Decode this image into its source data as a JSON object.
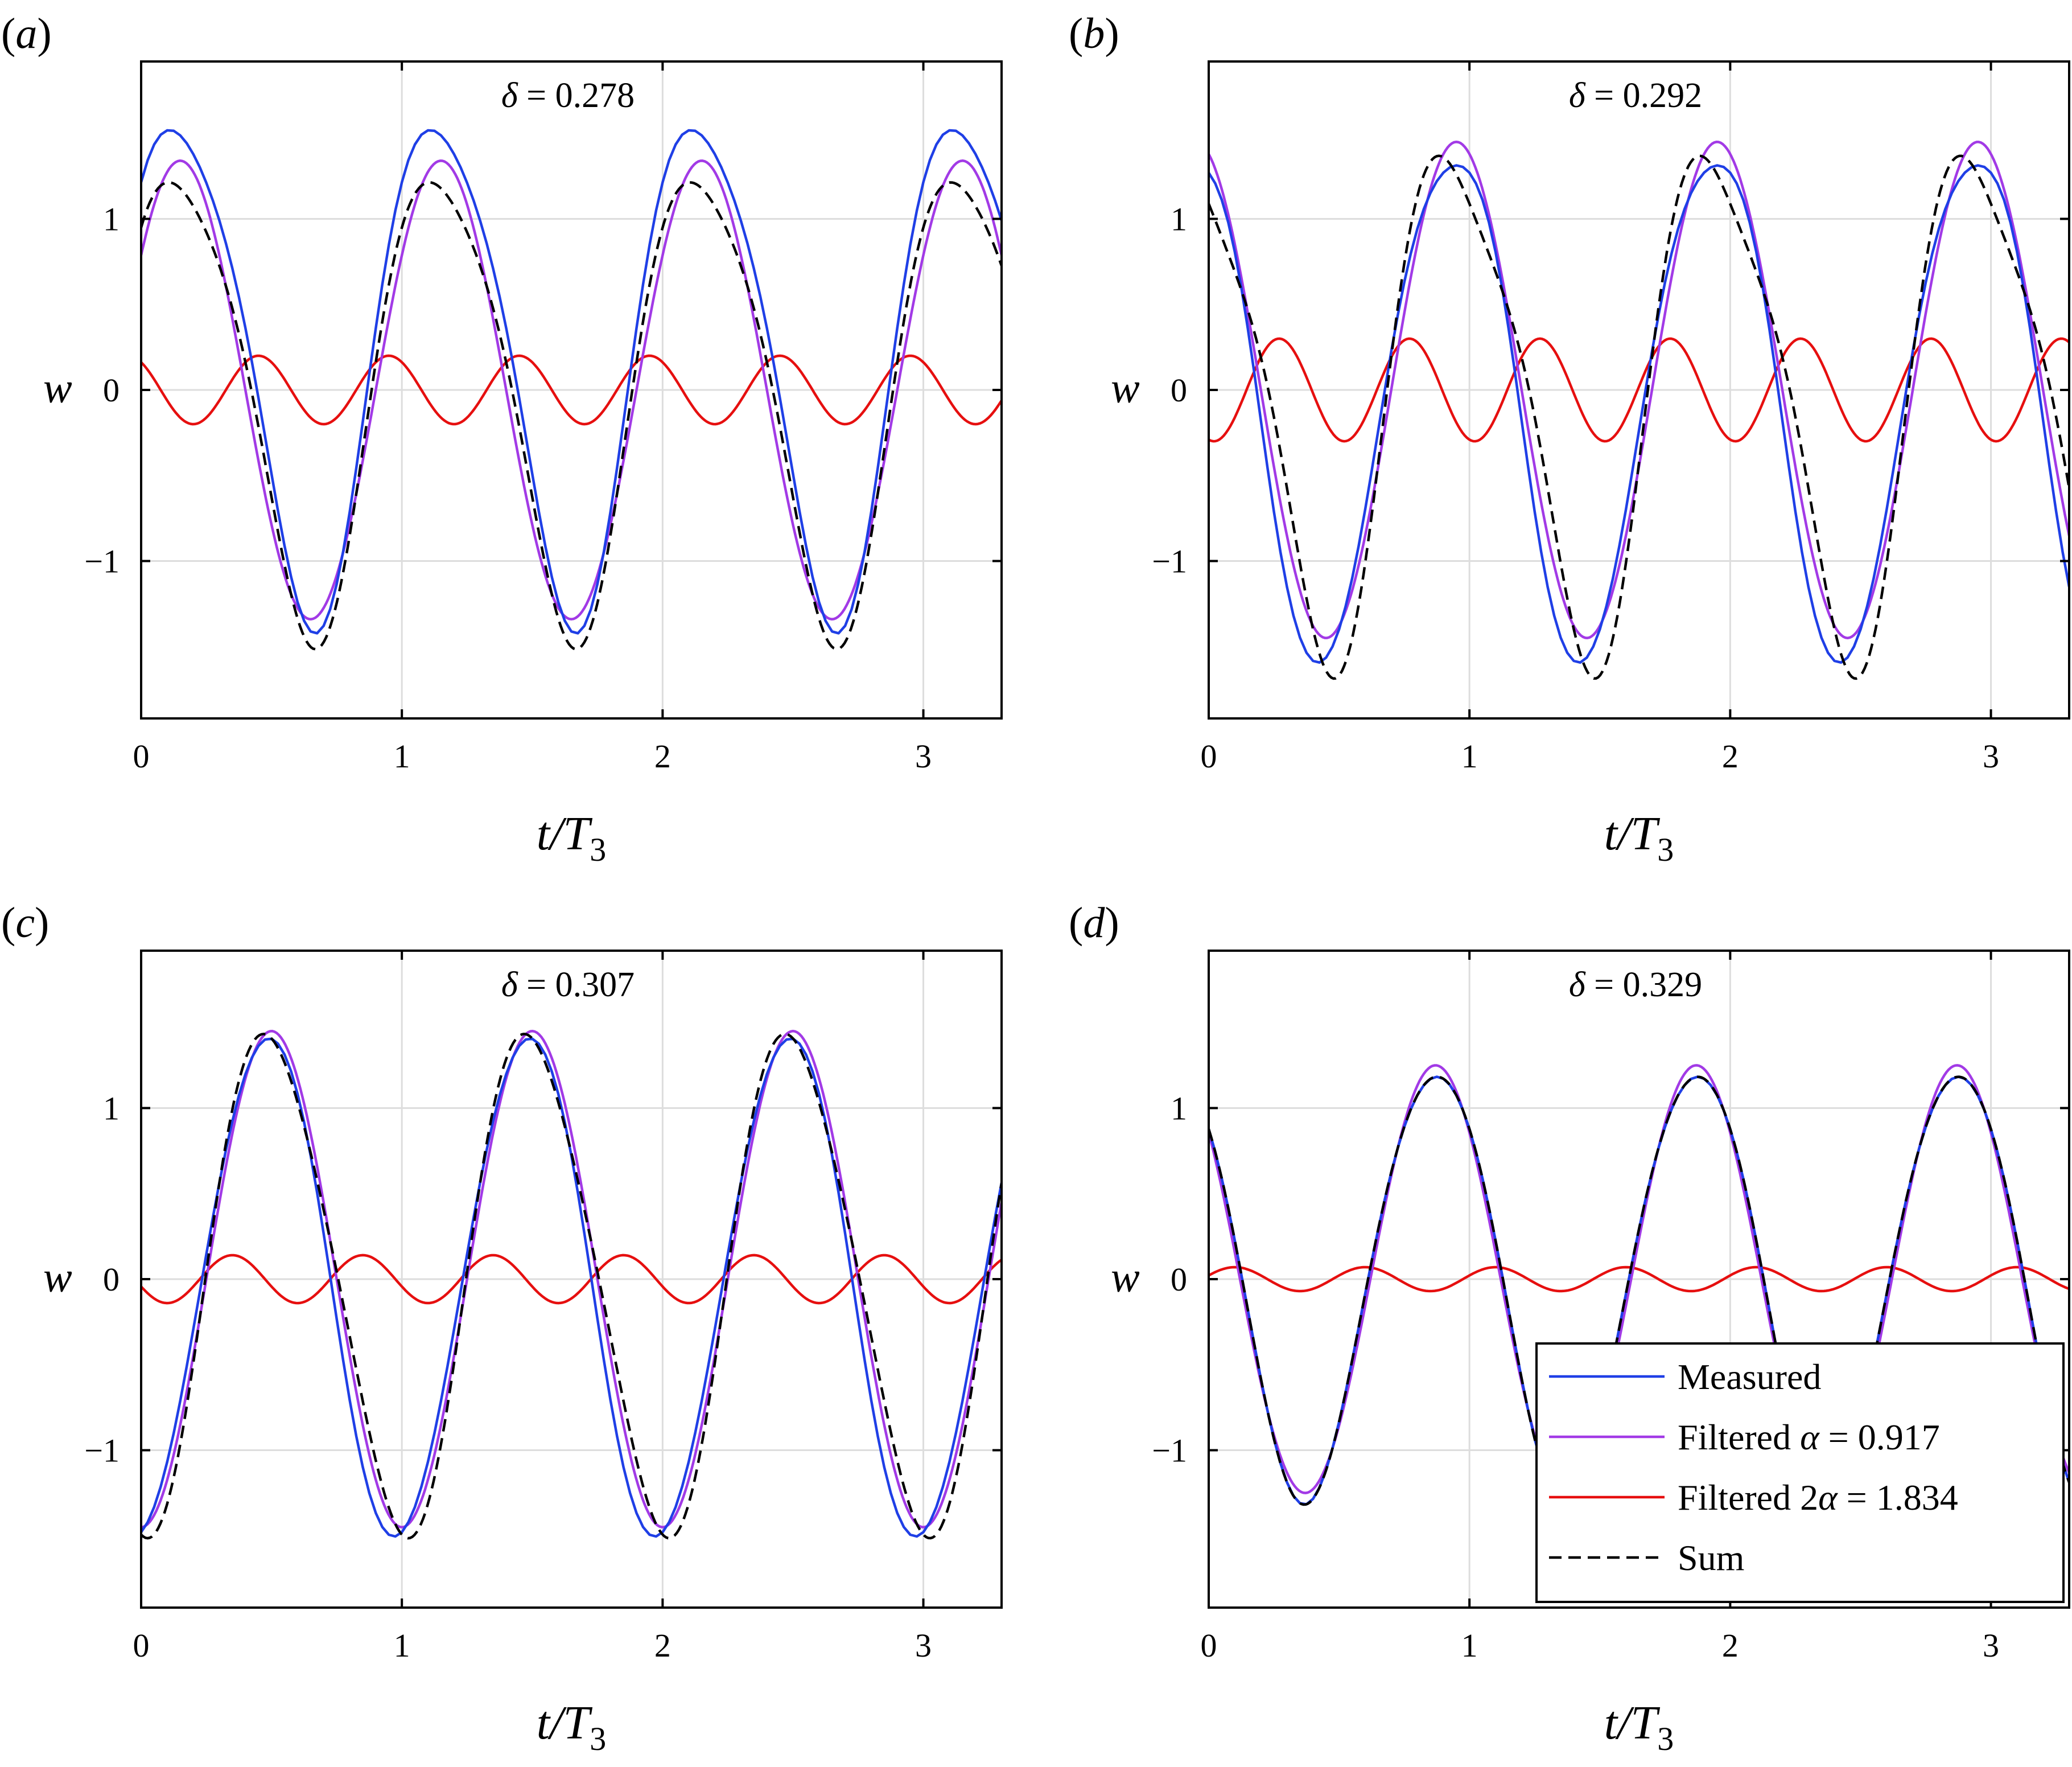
{
  "figure": {
    "legend": {
      "items": [
        {
          "label": "Measured",
          "color": "#1f3fe6",
          "dash": "solid"
        },
        {
          "label": "Filtered α = 0.917",
          "color": "#a23ae6",
          "dash": "solid"
        },
        {
          "label": "Filtered 2α = 1.834",
          "color": "#e60f0f",
          "dash": "solid"
        },
        {
          "label": "Sum",
          "color": "#000000",
          "dash": "dashed"
        }
      ]
    }
  },
  "chart_data": [
    {
      "type": "line",
      "panel_label": "(a)",
      "annotation": "δ = 0.278",
      "xlabel": "t/T3",
      "ylabel": "w",
      "xlim": [
        0,
        3.3
      ],
      "ylim": [
        -1.92,
        1.92
      ],
      "xticks": [
        "0",
        "1",
        "2",
        "3"
      ],
      "yticks": [
        "−1",
        "0",
        "1"
      ],
      "grid": true,
      "legend_shown": false,
      "series": [
        {
          "name": "Measured",
          "model": {
            "a1": 1.45,
            "p1": 0.15,
            "sk": 0.2,
            "a2": 0.2,
            "p2": 0.45,
            "dt": 0.0
          }
        },
        {
          "name": "Filtered α = 0.917",
          "model": {
            "a1": 1.34,
            "p1": 0.15,
            "sk": 0.0,
            "a2": 0.0,
            "p2": 0.0,
            "dt": 0.0
          }
        },
        {
          "name": "Filtered 2α = 1.834",
          "model": {
            "a1": 0.0,
            "p1": 0.0,
            "sk": 0.0,
            "a2": 0.2,
            "p2": 0.45,
            "dt": 0.0
          }
        },
        {
          "name": "Sum",
          "model": {
            "a1": 1.34,
            "p1": 0.15,
            "sk": 0.0,
            "a2": 0.2,
            "p2": 0.45,
            "dt": 0.0
          }
        }
      ]
    },
    {
      "type": "line",
      "panel_label": "(b)",
      "annotation": "δ = 0.292",
      "xlabel": "t/T3",
      "ylabel": "w",
      "xlim": [
        0,
        3.3
      ],
      "ylim": [
        -1.92,
        1.92
      ],
      "xticks": [
        "0",
        "1",
        "2",
        "3"
      ],
      "yticks": [
        "−1",
        "0",
        "1"
      ],
      "grid": true,
      "legend_shown": false,
      "series": [
        {
          "name": "Measured",
          "model": {
            "a1": 1.6,
            "p1": 0.93,
            "sk": -0.05,
            "a2": 0.3,
            "p2": 0.28,
            "dt": -0.07
          }
        },
        {
          "name": "Filtered α = 0.917",
          "model": {
            "a1": 1.45,
            "p1": 0.95,
            "sk": 0.0,
            "a2": 0.0,
            "p2": 0.0,
            "dt": 0.0
          }
        },
        {
          "name": "Filtered 2α = 1.834",
          "model": {
            "a1": 0.0,
            "p1": 0.0,
            "sk": 0.0,
            "a2": 0.3,
            "p2": 0.27,
            "dt": 0.0
          }
        },
        {
          "name": "Sum",
          "model": {
            "a1": 1.45,
            "p1": 0.95,
            "sk": 0.0,
            "a2": 0.3,
            "p2": 0.27,
            "dt": 0.0
          }
        }
      ]
    },
    {
      "type": "line",
      "panel_label": "(c)",
      "annotation": "δ = 0.307",
      "xlabel": "t/T3",
      "ylabel": "w",
      "xlim": [
        0,
        3.3
      ],
      "ylim": [
        -1.92,
        1.92
      ],
      "xticks": [
        "0",
        "1",
        "2",
        "3"
      ],
      "yticks": [
        "−1",
        "0",
        "1"
      ],
      "grid": true,
      "legend_shown": false,
      "series": [
        {
          "name": "Measured",
          "model": {
            "a1": 1.5,
            "p1": 0.48,
            "sk": -0.04,
            "a2": 0.14,
            "p2": 0.35,
            "dt": -0.04
          }
        },
        {
          "name": "Filtered α = 0.917",
          "model": {
            "a1": 1.45,
            "p1": 0.5,
            "sk": 0.0,
            "a2": 0.0,
            "p2": 0.0,
            "dt": 0.0
          }
        },
        {
          "name": "Filtered 2α = 1.834",
          "model": {
            "a1": 0.0,
            "p1": 0.0,
            "sk": 0.0,
            "a2": 0.14,
            "p2": 0.35,
            "dt": 0.0
          }
        },
        {
          "name": "Sum",
          "model": {
            "a1": 1.45,
            "p1": 0.5,
            "sk": 0.0,
            "a2": 0.14,
            "p2": 0.35,
            "dt": 0.0
          }
        }
      ]
    },
    {
      "type": "line",
      "panel_label": "(d)",
      "annotation": "δ = 0.329",
      "xlabel": "t/T3",
      "ylabel": "w",
      "xlim": [
        0,
        3.3
      ],
      "ylim": [
        -1.92,
        1.92
      ],
      "xticks": [
        "0",
        "1",
        "2",
        "3"
      ],
      "yticks": [
        "−1",
        "0",
        "1"
      ],
      "grid": true,
      "legend_shown": true,
      "legend_position": "bottom-right",
      "series": [
        {
          "name": "Measured",
          "model": {
            "a1": 1.25,
            "p1": 0.87,
            "sk": 0.0,
            "a2": 0.07,
            "p2": 0.1,
            "dt": 0.0
          }
        },
        {
          "name": "Filtered α = 0.917",
          "model": {
            "a1": 1.25,
            "p1": 0.87,
            "sk": 0.0,
            "a2": 0.0,
            "p2": 0.0,
            "dt": 0.0
          }
        },
        {
          "name": "Filtered 2α = 1.834",
          "model": {
            "a1": 0.0,
            "p1": 0.0,
            "sk": 0.0,
            "a2": 0.07,
            "p2": 0.1,
            "dt": 0.0
          }
        },
        {
          "name": "Sum",
          "model": {
            "a1": 1.25,
            "p1": 0.87,
            "sk": 0.0,
            "a2": 0.07,
            "p2": 0.1,
            "dt": 0.0
          }
        }
      ]
    }
  ]
}
